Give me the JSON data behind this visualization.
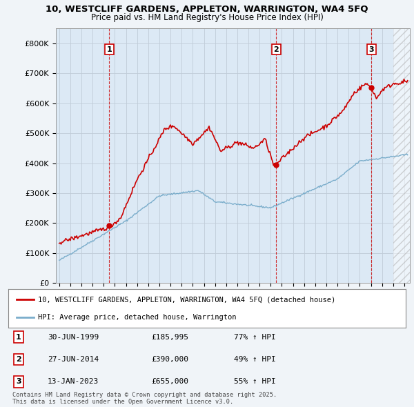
{
  "title_line1": "10, WESTCLIFF GARDENS, APPLETON, WARRINGTON, WA4 5FQ",
  "title_line2": "Price paid vs. HM Land Registry's House Price Index (HPI)",
  "ylim": [
    0,
    850000
  ],
  "yticks": [
    0,
    100000,
    200000,
    300000,
    400000,
    500000,
    600000,
    700000,
    800000
  ],
  "ytick_labels": [
    "£0",
    "£100K",
    "£200K",
    "£300K",
    "£400K",
    "£500K",
    "£600K",
    "£700K",
    "£800K"
  ],
  "xlim_start": 1994.7,
  "xlim_end": 2026.5,
  "hatch_start": 2025.0,
  "sale_dates": [
    1999.5,
    2014.5,
    2023.04
  ],
  "sale_prices": [
    185995,
    390000,
    655000
  ],
  "sale_labels": [
    "1",
    "2",
    "3"
  ],
  "red_color": "#cc0000",
  "blue_color": "#7aadcb",
  "plot_bg_color": "#dce9f5",
  "legend_label_red": "10, WESTCLIFF GARDENS, APPLETON, WARRINGTON, WA4 5FQ (detached house)",
  "legend_label_blue": "HPI: Average price, detached house, Warrington",
  "table_rows": [
    [
      "1",
      "30-JUN-1999",
      "£185,995",
      "77% ↑ HPI"
    ],
    [
      "2",
      "27-JUN-2014",
      "£390,000",
      "49% ↑ HPI"
    ],
    [
      "3",
      "13-JAN-2023",
      "£655,000",
      "55% ↑ HPI"
    ]
  ],
  "footer": "Contains HM Land Registry data © Crown copyright and database right 2025.\nThis data is licensed under the Open Government Licence v3.0.",
  "background_color": "#f0f4f8"
}
